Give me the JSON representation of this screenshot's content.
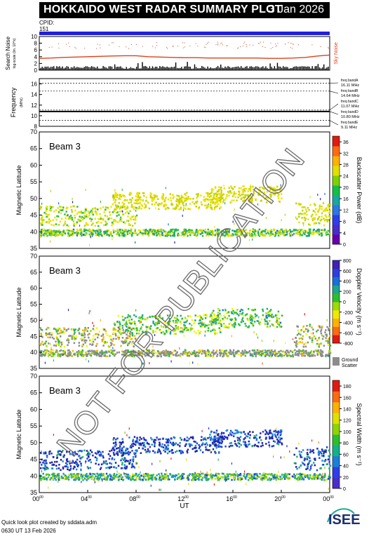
{
  "header": {
    "title": "HOKKAIDO WEST RADAR SUMMARY PLOT",
    "date": "3 Jan 2026",
    "cpid_label": "CPID:",
    "cpid_value": "151"
  },
  "footer": {
    "line1": "Quick look plot created by sddata.adm",
    "line2": "0630 UT 13 Feb 2026",
    "logo_text": "ISEE"
  },
  "watermark": "NOT FOR PUBLICATION",
  "colors": {
    "cpid_bar": "#1f1fe0",
    "sky_noise": "#e0401a",
    "search_noise": "#000000",
    "ground_scatter": "#8c8c8c",
    "logo_teal": "#1aa89a",
    "logo_navy": "#1c2f6e"
  },
  "chart_data": [
    {
      "type": "line",
      "name": "noise-panel",
      "ylabel": "Search Noise",
      "ylabel2": "log-scale (lin. 10^x)",
      "yticks": [
        "0",
        "2",
        "4",
        "6",
        "8",
        "10"
      ],
      "ylim": [
        0,
        10
      ],
      "legend": "Sky Noise",
      "series": [
        {
          "name": "Sky Noise",
          "x": [
            0,
            1,
            2,
            3,
            4,
            5,
            6,
            7,
            8,
            9,
            10,
            11,
            12,
            13,
            14,
            15,
            16,
            17,
            18,
            19,
            20,
            21,
            22,
            23,
            24
          ],
          "values": [
            3.5,
            3.6,
            3.8,
            3.9,
            4.0,
            4.1,
            4.2,
            4.3,
            4.3,
            4.0,
            3.9,
            3.8,
            3.7,
            3.7,
            3.6,
            3.6,
            3.6,
            3.6,
            3.6,
            3.5,
            3.5,
            3.6,
            3.8,
            4.2,
            4.5
          ]
        },
        {
          "name": "Search Noise",
          "x": [
            0,
            4,
            8,
            12,
            16,
            20,
            24
          ],
          "values": [
            0.5,
            0.5,
            0.6,
            0.5,
            0.5,
            0.5,
            0.6
          ]
        }
      ]
    },
    {
      "type": "line",
      "name": "frequency-panel",
      "ylabel": "Frequency",
      "yunit": "(MHz)",
      "yticks": [
        "8",
        "10",
        "12",
        "14",
        "16"
      ],
      "ylim": [
        8,
        17
      ],
      "bands": [
        {
          "name": "freq bandA",
          "value": "16.11 MHz",
          "mhz": 16.11
        },
        {
          "name": "freq bandB",
          "value": "14.64 MHz",
          "mhz": 14.64
        },
        {
          "name": "freq bandC",
          "value": "11.07 MHz",
          "mhz": 11.07
        },
        {
          "name": "freq bandD",
          "value": "10.80 MHz",
          "mhz": 10.8
        },
        {
          "name": "freq bandE",
          "value": "9.11 MHz",
          "mhz": 9.11
        }
      ],
      "operating_frequency_mhz": 10.8
    },
    {
      "type": "heatmap",
      "name": "power",
      "beam_label": "Beam 3",
      "ylabel": "Magnetic Latitude",
      "ylim": [
        35,
        70
      ],
      "yticks": [
        "35",
        "40",
        "45",
        "50",
        "55",
        "60",
        "65",
        "70"
      ],
      "colorbar_label": "Backscatter Power (dB)",
      "colorbar_ticks": [
        "0",
        "4",
        "8",
        "12",
        "16",
        "20",
        "24",
        "28",
        "32",
        "36"
      ],
      "colorbar_range": [
        0,
        38
      ],
      "bands": [
        {
          "t0": 0,
          "t1": 24,
          "lat0": 39,
          "lat1": 41,
          "level": 0.45
        },
        {
          "t0": 0,
          "t1": 8,
          "lat0": 42,
          "lat1": 48,
          "level": 0.3
        },
        {
          "t0": 6,
          "t1": 15,
          "lat0": 47,
          "lat1": 52,
          "level": 0.1
        },
        {
          "t0": 14,
          "t1": 20,
          "lat0": 49,
          "lat1": 54,
          "level": 0.1
        },
        {
          "t0": 21,
          "t1": 24,
          "lat0": 42,
          "lat1": 49,
          "level": 0.2
        }
      ]
    },
    {
      "type": "heatmap",
      "name": "velocity",
      "beam_label": "Beam 3",
      "ylabel": "Magnetic Latitude",
      "ylim": [
        35,
        70
      ],
      "yticks": [
        "35",
        "40",
        "45",
        "50",
        "55",
        "60",
        "65",
        "70"
      ],
      "colorbar_label": "Doppler Velocity (m s⁻¹)",
      "colorbar_ticks": [
        "-800",
        "-600",
        "-400",
        "-200",
        "0",
        "200",
        "400",
        "600",
        "800"
      ],
      "colorbar_range": [
        -800,
        800
      ],
      "ground_scatter_label": "Ground Scatter",
      "bands": [
        {
          "t0": 0,
          "t1": 24,
          "lat0": 39,
          "lat1": 41,
          "level": 0.5
        },
        {
          "t0": 0,
          "t1": 8,
          "lat0": 42,
          "lat1": 48,
          "level": 0.45
        },
        {
          "t0": 6,
          "t1": 15,
          "lat0": 46,
          "lat1": 52,
          "level": 0.55
        },
        {
          "t0": 14,
          "t1": 20,
          "lat0": 48,
          "lat1": 54,
          "level": 0.6
        },
        {
          "t0": 21,
          "t1": 24,
          "lat0": 42,
          "lat1": 49,
          "level": 0.45
        }
      ]
    },
    {
      "type": "heatmap",
      "name": "width",
      "beam_label": "Beam 3",
      "ylabel": "Magnetic Latitude",
      "xlabel": "UT",
      "ylim": [
        35,
        70
      ],
      "yticks": [
        "35",
        "40",
        "45",
        "50",
        "55",
        "60",
        "65",
        "70"
      ],
      "xticks": [
        "00",
        "04",
        "08",
        "12",
        "16",
        "20",
        "00"
      ],
      "xtick_sup": "00",
      "colorbar_label": "Spectral Width (m s⁻¹)",
      "colorbar_ticks": [
        "0",
        "20",
        "40",
        "60",
        "80",
        "100",
        "120",
        "140",
        "160",
        "180"
      ],
      "colorbar_range": [
        0,
        190
      ],
      "bands": [
        {
          "t0": 0,
          "t1": 24,
          "lat0": 39,
          "lat1": 41,
          "level": 0.4
        },
        {
          "t0": 0,
          "t1": 8,
          "lat0": 42,
          "lat1": 48,
          "level": 0.1
        },
        {
          "t0": 6,
          "t1": 15,
          "lat0": 47,
          "lat1": 52,
          "level": 0.08
        },
        {
          "t0": 14,
          "t1": 20,
          "lat0": 49,
          "lat1": 54,
          "level": 0.1
        },
        {
          "t0": 21,
          "t1": 24,
          "lat0": 42,
          "lat1": 49,
          "level": 0.15
        }
      ]
    }
  ]
}
